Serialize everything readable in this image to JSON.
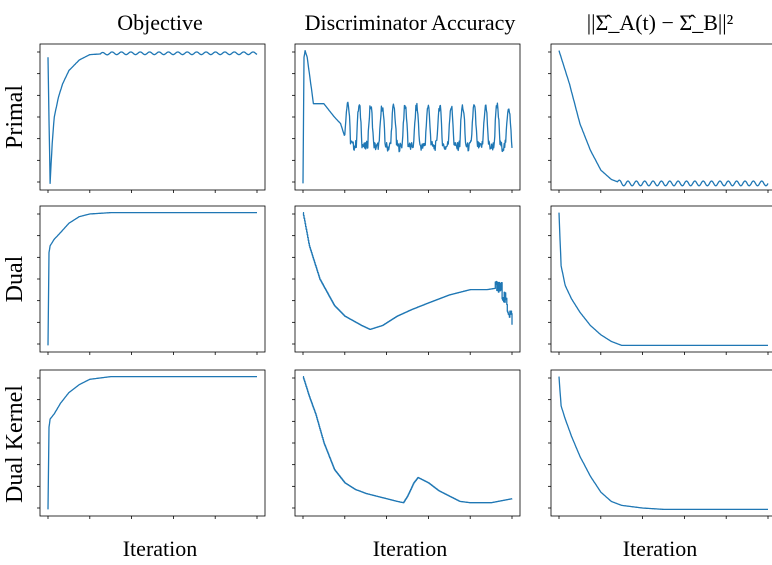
{
  "figure": {
    "column_titles": [
      "Objective",
      "Discriminator Accuracy",
      "||Σ̂_A(t) − Σ̂_B||²"
    ],
    "row_labels": [
      "Primal",
      "Dual",
      "Dual Kernel"
    ],
    "xlabels": [
      "Iteration",
      "Iteration",
      "Iteration"
    ]
  },
  "chart_data": {
    "type": "line",
    "layout": "3x3 small multiples, no tick labels",
    "grid": false,
    "line_color": "#1f77b4",
    "panels": [
      {
        "row": "Primal",
        "column": "Objective",
        "x": [
          0,
          1,
          2,
          3,
          5,
          7,
          10,
          15,
          20,
          30,
          50,
          100
        ],
        "y": [
          0.95,
          0.0,
          0.3,
          0.5,
          0.65,
          0.75,
          0.85,
          0.93,
          0.97,
          0.98,
          0.98,
          0.98
        ],
        "ylim": [
          -0.05,
          1.05
        ],
        "oscillation": {
          "start": 25,
          "amp": 0.01,
          "period": 4.5
        }
      },
      {
        "row": "Primal",
        "column": "Discriminator Accuracy",
        "x": [
          0,
          0.5,
          1,
          2,
          5,
          10,
          15,
          18,
          20,
          25,
          30,
          40,
          50,
          60,
          70,
          80,
          90,
          100
        ],
        "y": [
          0.0,
          0.95,
          1.0,
          0.95,
          0.6,
          0.6,
          0.5,
          0.45,
          0.35,
          0.3,
          0.3,
          0.3,
          0.3,
          0.3,
          0.3,
          0.3,
          0.3,
          0.3
        ],
        "ylim": [
          -0.05,
          1.05
        ],
        "oscillation": {
          "start": 20,
          "amp": 0.28,
          "period": 5.5
        }
      },
      {
        "row": "Primal",
        "column": "||Σ̂_A(t) − Σ̂_B||²",
        "x": [
          0,
          5,
          10,
          15,
          20,
          25,
          30,
          40,
          60,
          100
        ],
        "y": [
          1.0,
          0.75,
          0.45,
          0.25,
          0.1,
          0.03,
          0.0,
          0.0,
          0.0,
          0.0
        ],
        "ylim": [
          -0.05,
          1.05
        ],
        "oscillation": {
          "start": 28,
          "amp": 0.018,
          "period": 4.0
        }
      },
      {
        "row": "Dual",
        "column": "Objective",
        "x": [
          0,
          0.5,
          1,
          3,
          6,
          10,
          15,
          20,
          30,
          50,
          100
        ],
        "y": [
          0.0,
          0.7,
          0.75,
          0.8,
          0.85,
          0.92,
          0.97,
          0.99,
          1.0,
          1.0,
          1.0
        ],
        "ylim": [
          -0.05,
          1.05
        ]
      },
      {
        "row": "Dual",
        "column": "Discriminator Accuracy",
        "x": [
          0,
          3,
          8,
          15,
          20,
          28,
          32,
          38,
          45,
          52,
          60,
          70,
          75,
          80,
          85,
          88,
          92,
          95,
          98,
          100
        ],
        "y": [
          1.0,
          0.75,
          0.5,
          0.3,
          0.22,
          0.15,
          0.12,
          0.15,
          0.22,
          0.27,
          0.32,
          0.38,
          0.4,
          0.42,
          0.42,
          0.42,
          0.43,
          0.42,
          0.28,
          0.2
        ],
        "ylim": [
          -0.05,
          1.05
        ],
        "noise": {
          "start": 92,
          "amp": 0.06
        },
        "step": true
      },
      {
        "row": "Dual",
        "column": "||Σ̂_A(t) − Σ̂_B||²",
        "x": [
          0,
          1,
          3,
          6,
          10,
          15,
          20,
          25,
          30,
          40,
          60,
          100
        ],
        "y": [
          1.0,
          0.6,
          0.45,
          0.35,
          0.25,
          0.15,
          0.08,
          0.03,
          0.0,
          0.0,
          0.0,
          0.0
        ],
        "ylim": [
          -0.05,
          1.05
        ]
      },
      {
        "row": "Dual Kernel",
        "column": "Objective",
        "x": [
          0,
          0.5,
          1,
          3,
          6,
          10,
          15,
          20,
          30,
          40,
          50,
          100
        ],
        "y": [
          0.0,
          0.62,
          0.68,
          0.72,
          0.8,
          0.88,
          0.94,
          0.98,
          1.0,
          1.0,
          1.0,
          1.0
        ],
        "ylim": [
          -0.05,
          1.05
        ]
      },
      {
        "row": "Dual Kernel",
        "column": "Discriminator Accuracy",
        "x": [
          0,
          3,
          6,
          10,
          15,
          20,
          25,
          30,
          35,
          40,
          45,
          48,
          50,
          53,
          55,
          60,
          65,
          70,
          75,
          80,
          90,
          100
        ],
        "y": [
          1.0,
          0.85,
          0.72,
          0.5,
          0.3,
          0.2,
          0.15,
          0.12,
          0.1,
          0.08,
          0.06,
          0.05,
          0.1,
          0.2,
          0.24,
          0.2,
          0.14,
          0.1,
          0.06,
          0.05,
          0.05,
          0.08
        ],
        "ylim": [
          -0.05,
          1.05
        ],
        "step": true
      },
      {
        "row": "Dual Kernel",
        "column": "||Σ̂_A(t) − Σ̂_B||²",
        "x": [
          0,
          1,
          3,
          6,
          10,
          15,
          20,
          25,
          30,
          40,
          50,
          60,
          70,
          100
        ],
        "y": [
          1.0,
          0.78,
          0.68,
          0.55,
          0.4,
          0.25,
          0.13,
          0.06,
          0.03,
          0.01,
          0.0,
          0.0,
          0.0,
          0.0
        ],
        "ylim": [
          -0.05,
          1.05
        ]
      }
    ]
  }
}
